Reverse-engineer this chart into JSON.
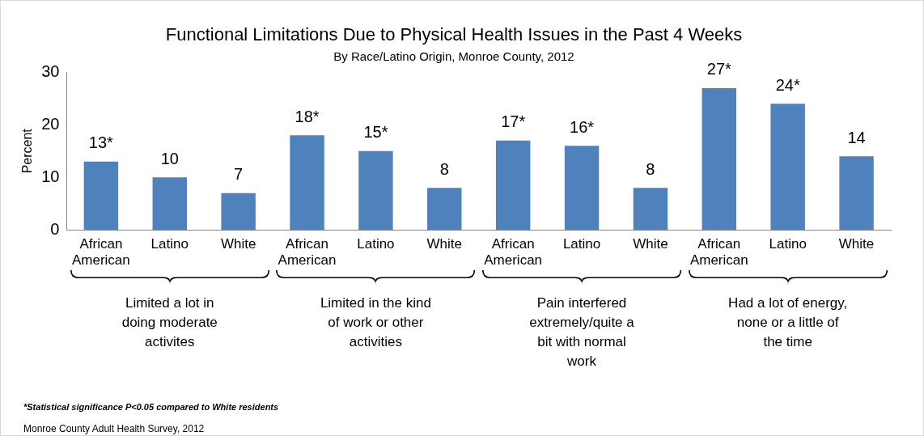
{
  "chart_data": {
    "type": "bar",
    "title": "Functional Limitations Due to Physical Health Issues in the Past 4 Weeks",
    "subtitle": "By Race/Latino Origin, Monroe County, 2012",
    "ylabel": "Percent",
    "categories": [
      "African American",
      "Latino",
      "White",
      "African American",
      "Latino",
      "White",
      "African American",
      "Latino",
      "White",
      "African American",
      "Latino",
      "White"
    ],
    "values": [
      13,
      10,
      7,
      18,
      15,
      8,
      17,
      16,
      8,
      27,
      24,
      14
    ],
    "value_labels": [
      "13*",
      "10",
      "7",
      "18*",
      "15*",
      "8",
      "17*",
      "16*",
      "8",
      "27*",
      "24*",
      "14"
    ],
    "color": "#4f81bd",
    "ylim": [
      0,
      30
    ],
    "yticks": [
      0,
      10,
      20,
      30
    ],
    "grid": false,
    "legend": false,
    "annotations": [
      "Limited a lot in doing moderate activites",
      "Limited in the kind of work or other activities",
      "Pain interfered extremely/quite a bit  with normal work",
      "Had a lot of energy, none or a little of the time",
      "*Statistical significance P<0.05  compared to White residents",
      "Monroe County Adult Health Survey, 2012"
    ]
  }
}
